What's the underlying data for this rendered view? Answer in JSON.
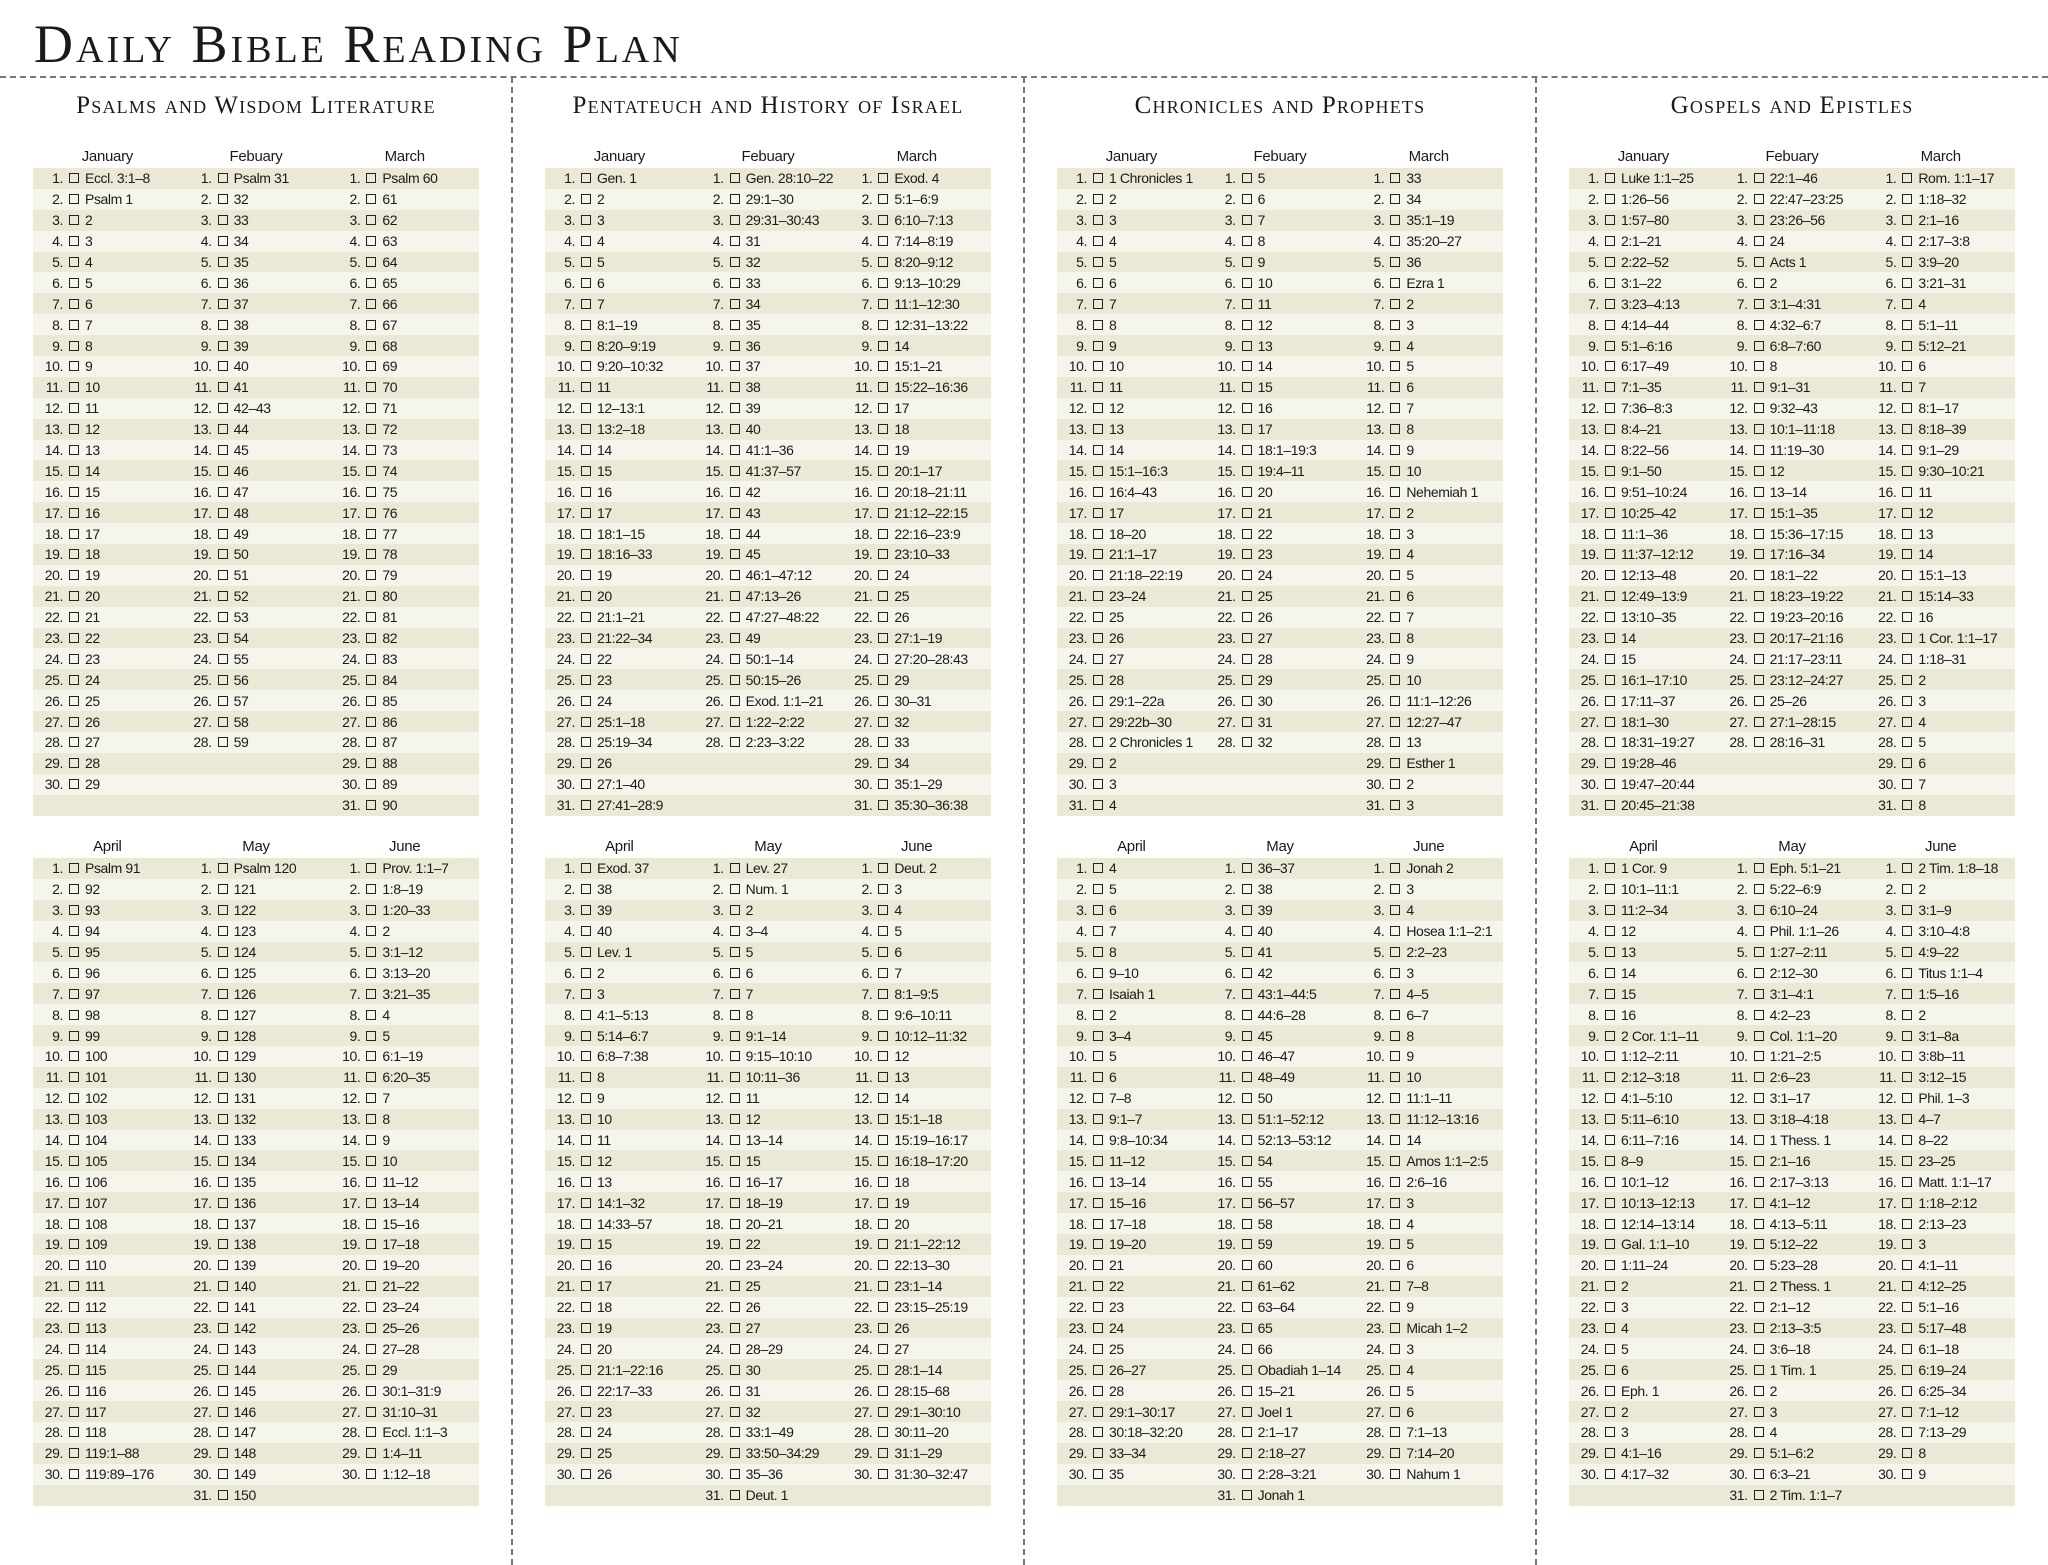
{
  "title": "Daily Bible Reading Plan",
  "colors": {
    "row_dark": "#ebe9d5",
    "row_light": "#f6f5ec",
    "text": "#1a1a1a"
  },
  "checkbox_icon": "empty-square",
  "months_top": [
    "January",
    "Febuary",
    "March"
  ],
  "months_bottom": [
    "April",
    "May",
    "June"
  ],
  "sections": [
    {
      "title": "Psalms and Wisdom Literature",
      "months": [
        [
          "Eccl. 3:1–8",
          "Psalm 1",
          "2",
          "3",
          "4",
          "5",
          "6",
          "7",
          "8",
          "9",
          "10",
          "11",
          "12",
          "13",
          "14",
          "15",
          "16",
          "17",
          "18",
          "19",
          "20",
          "21",
          "22",
          "23",
          "24",
          "25",
          "26",
          "27",
          "28",
          "29"
        ],
        [
          "Psalm 31",
          "32",
          "33",
          "34",
          "35",
          "36",
          "37",
          "38",
          "39",
          "40",
          "41",
          "42–43",
          "44",
          "45",
          "46",
          "47",
          "48",
          "49",
          "50",
          "51",
          "52",
          "53",
          "54",
          "55",
          "56",
          "57",
          "58",
          "59"
        ],
        [
          "Psalm 60",
          "61",
          "62",
          "63",
          "64",
          "65",
          "66",
          "67",
          "68",
          "69",
          "70",
          "71",
          "72",
          "73",
          "74",
          "75",
          "76",
          "77",
          "78",
          "79",
          "80",
          "81",
          "82",
          "83",
          "84",
          "85",
          "86",
          "87",
          "88",
          "89",
          "90"
        ],
        [
          "Psalm 91",
          "92",
          "93",
          "94",
          "95",
          "96",
          "97",
          "98",
          "99",
          "100",
          "101",
          "102",
          "103",
          "104",
          "105",
          "106",
          "107",
          "108",
          "109",
          "110",
          "111",
          "112",
          "113",
          "114",
          "115",
          "116",
          "117",
          "118",
          "119:1–88",
          "119:89–176"
        ],
        [
          "Psalm 120",
          "121",
          "122",
          "123",
          "124",
          "125",
          "126",
          "127",
          "128",
          "129",
          "130",
          "131",
          "132",
          "133",
          "134",
          "135",
          "136",
          "137",
          "138",
          "139",
          "140",
          "141",
          "142",
          "143",
          "144",
          "145",
          "146",
          "147",
          "148",
          "149",
          "150"
        ],
        [
          "Prov. 1:1–7",
          "1:8–19",
          "1:20–33",
          "2",
          "3:1–12",
          "3:13–20",
          "3:21–35",
          "4",
          "5",
          "6:1–19",
          "6:20–35",
          "7",
          "8",
          "9",
          "10",
          "11–12",
          "13–14",
          "15–16",
          "17–18",
          "19–20",
          "21–22",
          "23–24",
          "25–26",
          "27–28",
          "29",
          "30:1–31:9",
          "31:10–31",
          "Eccl. 1:1–3",
          "1:4–11",
          "1:12–18"
        ]
      ]
    },
    {
      "title": "Pentateuch and History of Israel",
      "months": [
        [
          "Gen. 1",
          "2",
          "3",
          "4",
          "5",
          "6",
          "7",
          "8:1–19",
          "8:20–9:19",
          "9:20–10:32",
          "11",
          "12–13:1",
          "13:2–18",
          "14",
          "15",
          "16",
          "17",
          "18:1–15",
          "18:16–33",
          "19",
          "20",
          "21:1–21",
          "21:22–34",
          "22",
          "23",
          "24",
          "25:1–18",
          "25:19–34",
          "26",
          "27:1–40",
          "27:41–28:9"
        ],
        [
          "Gen. 28:10–22",
          "29:1–30",
          "29:31–30:43",
          "31",
          "32",
          "33",
          "34",
          "35",
          "36",
          "37",
          "38",
          "39",
          "40",
          "41:1–36",
          "41:37–57",
          "42",
          "43",
          "44",
          "45",
          "46:1–47:12",
          "47:13–26",
          "47:27–48:22",
          "49",
          "50:1–14",
          "50:15–26",
          "Exod. 1:1–21",
          "1:22–2:22",
          "2:23–3:22"
        ],
        [
          "Exod. 4",
          "5:1–6:9",
          "6:10–7:13",
          "7:14–8:19",
          "8:20–9:12",
          "9:13–10:29",
          "11:1–12:30",
          "12:31–13:22",
          "14",
          "15:1–21",
          "15:22–16:36",
          "17",
          "18",
          "19",
          "20:1–17",
          "20:18–21:11",
          "21:12–22:15",
          "22:16–23:9",
          "23:10–33",
          "24",
          "25",
          "26",
          "27:1–19",
          "27:20–28:43",
          "29",
          "30–31",
          "32",
          "33",
          "34",
          "35:1–29",
          "35:30–36:38"
        ],
        [
          "Exod. 37",
          "38",
          "39",
          "40",
          "Lev. 1",
          "2",
          "3",
          "4:1–5:13",
          "5:14–6:7",
          "6:8–7:38",
          "8",
          "9",
          "10",
          "11",
          "12",
          "13",
          "14:1–32",
          "14:33–57",
          "15",
          "16",
          "17",
          "18",
          "19",
          "20",
          "21:1–22:16",
          "22:17–33",
          "23",
          "24",
          "25",
          "26"
        ],
        [
          "Lev. 27",
          "Num. 1",
          "2",
          "3–4",
          "5",
          "6",
          "7",
          "8",
          "9:1–14",
          "9:15–10:10",
          "10:11–36",
          "11",
          "12",
          "13–14",
          "15",
          "16–17",
          "18–19",
          "20–21",
          "22",
          "23–24",
          "25",
          "26",
          "27",
          "28–29",
          "30",
          "31",
          "32",
          "33:1–49",
          "33:50–34:29",
          "35–36",
          "Deut. 1"
        ],
        [
          "Deut. 2",
          "3",
          "4",
          "5",
          "6",
          "7",
          "8:1–9:5",
          "9:6–10:11",
          "10:12–11:32",
          "12",
          "13",
          "14",
          "15:1–18",
          "15:19–16:17",
          "16:18–17:20",
          "18",
          "19",
          "20",
          "21:1–22:12",
          "22:13–30",
          "23:1–14",
          "23:15–25:19",
          "26",
          "27",
          "28:1–14",
          "28:15–68",
          "29:1–30:10",
          "30:11–20",
          "31:1–29",
          "31:30–32:47"
        ]
      ]
    },
    {
      "title": "Chronicles and Prophets",
      "months": [
        [
          "1 Chronicles 1",
          "2",
          "3",
          "4",
          "5",
          "6",
          "7",
          "8",
          "9",
          "10",
          "11",
          "12",
          "13",
          "14",
          "15:1–16:3",
          "16:4–43",
          "17",
          "18–20",
          "21:1–17",
          "21:18–22:19",
          "23–24",
          "25",
          "26",
          "27",
          "28",
          "29:1–22a",
          "29:22b–30",
          "2 Chronicles 1",
          "2",
          "3",
          "4"
        ],
        [
          "5",
          "6",
          "7",
          "8",
          "9",
          "10",
          "11",
          "12",
          "13",
          "14",
          "15",
          "16",
          "17",
          "18:1–19:3",
          "19:4–11",
          "20",
          "21",
          "22",
          "23",
          "24",
          "25",
          "26",
          "27",
          "28",
          "29",
          "30",
          "31",
          "32"
        ],
        [
          "33",
          "34",
          "35:1–19",
          "35:20–27",
          "36",
          "Ezra 1",
          "2",
          "3",
          "4",
          "5",
          "6",
          "7",
          "8",
          "9",
          "10",
          "Nehemiah 1",
          "2",
          "3",
          "4",
          "5",
          "6",
          "7",
          "8",
          "9",
          "10",
          "11:1–12:26",
          "12:27–47",
          "13",
          "Esther 1",
          "2",
          "3"
        ],
        [
          "4",
          "5",
          "6",
          "7",
          "8",
          "9–10",
          "Isaiah 1",
          "2",
          "3–4",
          "5",
          "6",
          "7–8",
          "9:1–7",
          "9:8–10:34",
          "11–12",
          "13–14",
          "15–16",
          "17–18",
          "19–20",
          "21",
          "22",
          "23",
          "24",
          "25",
          "26–27",
          "28",
          "29:1–30:17",
          "30:18–32:20",
          "33–34",
          "35"
        ],
        [
          "36–37",
          "38",
          "39",
          "40",
          "41",
          "42",
          "43:1–44:5",
          "44:6–28",
          "45",
          "46–47",
          "48–49",
          "50",
          "51:1–52:12",
          "52:13–53:12",
          "54",
          "55",
          "56–57",
          "58",
          "59",
          "60",
          "61–62",
          "63–64",
          "65",
          "66",
          "Obadiah 1–14",
          "15–21",
          "Joel 1",
          "2:1–17",
          "2:18–27",
          "2:28–3:21",
          "Jonah 1"
        ],
        [
          "Jonah 2",
          "3",
          "4",
          "Hosea 1:1–2:1",
          "2:2–23",
          "3",
          "4–5",
          "6–7",
          "8",
          "9",
          "10",
          "11:1–11",
          "11:12–13:16",
          "14",
          "Amos 1:1–2:5",
          "2:6–16",
          "3",
          "4",
          "5",
          "6",
          "7–8",
          "9",
          "Micah 1–2",
          "3",
          "4",
          "5",
          "6",
          "7:1–13",
          "7:14–20",
          "Nahum 1"
        ]
      ]
    },
    {
      "title": "Gospels and Epistles",
      "months": [
        [
          "Luke 1:1–25",
          "1:26–56",
          "1:57–80",
          "2:1–21",
          "2:22–52",
          "3:1–22",
          "3:23–4:13",
          "4:14–44",
          "5:1–6:16",
          "6:17–49",
          "7:1–35",
          "7:36–8:3",
          "8:4–21",
          "8:22–56",
          "9:1–50",
          "9:51–10:24",
          "10:25–42",
          "11:1–36",
          "11:37–12:12",
          "12:13–48",
          "12:49–13:9",
          "13:10–35",
          "14",
          "15",
          "16:1–17:10",
          "17:11–37",
          "18:1–30",
          "18:31–19:27",
          "19:28–46",
          "19:47–20:44",
          "20:45–21:38"
        ],
        [
          "22:1–46",
          "22:47–23:25",
          "23:26–56",
          "24",
          "Acts 1",
          "2",
          "3:1–4:31",
          "4:32–6:7",
          "6:8–7:60",
          "8",
          "9:1–31",
          "9:32–43",
          "10:1–11:18",
          "11:19–30",
          "12",
          "13–14",
          "15:1–35",
          "15:36–17:15",
          "17:16–34",
          "18:1–22",
          "18:23–19:22",
          "19:23–20:16",
          "20:17–21:16",
          "21:17–23:11",
          "23:12–24:27",
          "25–26",
          "27:1–28:15",
          "28:16–31"
        ],
        [
          "Rom. 1:1–17",
          "1:18–32",
          "2:1–16",
          "2:17–3:8",
          "3:9–20",
          "3:21–31",
          "4",
          "5:1–11",
          "5:12–21",
          "6",
          "7",
          "8:1–17",
          "8:18–39",
          "9:1–29",
          "9:30–10:21",
          "11",
          "12",
          "13",
          "14",
          "15:1–13",
          "15:14–33",
          "16",
          "1 Cor. 1:1–17",
          "1:18–31",
          "2",
          "3",
          "4",
          "5",
          "6",
          "7",
          "8"
        ],
        [
          "1 Cor. 9",
          "10:1–11:1",
          "11:2–34",
          "12",
          "13",
          "14",
          "15",
          "16",
          "2 Cor. 1:1–11",
          "1:12–2:11",
          "2:12–3:18",
          "4:1–5:10",
          "5:11–6:10",
          "6:11–7:16",
          "8–9",
          "10:1–12",
          "10:13–12:13",
          "12:14–13:14",
          "Gal. 1:1–10",
          "1:11–24",
          "2",
          "3",
          "4",
          "5",
          "6",
          "Eph. 1",
          "2",
          "3",
          "4:1–16",
          "4:17–32"
        ],
        [
          "Eph. 5:1–21",
          "5:22–6:9",
          "6:10–24",
          "Phil. 1:1–26",
          "1:27–2:11",
          "2:12–30",
          "3:1–4:1",
          "4:2–23",
          "Col. 1:1–20",
          "1:21–2:5",
          "2:6–23",
          "3:1–17",
          "3:18–4:18",
          "1 Thess. 1",
          "2:1–16",
          "2:17–3:13",
          "4:1–12",
          "4:13–5:11",
          "5:12–22",
          "5:23–28",
          "2 Thess. 1",
          "2:1–12",
          "2:13–3:5",
          "3:6–18",
          "1 Tim. 1",
          "2",
          "3",
          "4",
          "5:1–6:2",
          "6:3–21",
          "2 Tim. 1:1–7"
        ],
        [
          "2 Tim. 1:8–18",
          "2",
          "3:1–9",
          "3:10–4:8",
          "4:9–22",
          "Titus 1:1–4",
          "1:5–16",
          "2",
          "3:1–8a",
          "3:8b–11",
          "3:12–15",
          "Phil. 1–3",
          "4–7",
          "8–22",
          "23–25",
          "Matt. 1:1–17",
          "1:18–2:12",
          "2:13–23",
          "3",
          "4:1–11",
          "4:12–25",
          "5:1–16",
          "5:17–48",
          "6:1–18",
          "6:19–24",
          "6:25–34",
          "7:1–12",
          "7:13–29",
          "8",
          "9"
        ]
      ]
    }
  ]
}
